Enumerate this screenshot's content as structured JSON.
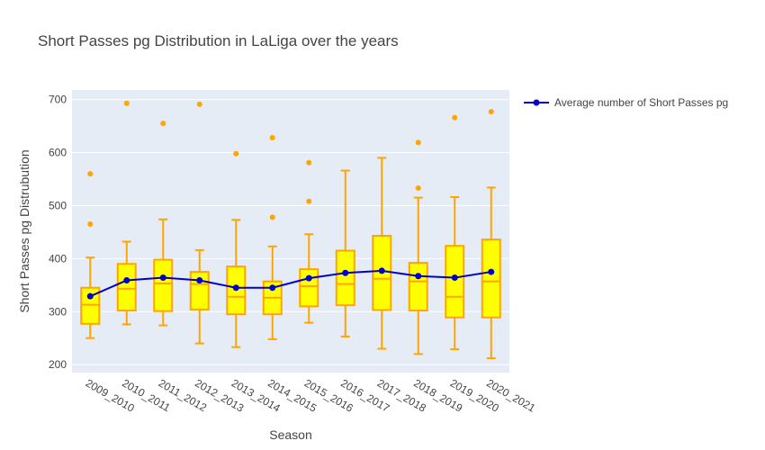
{
  "chart_data": {
    "type": "box",
    "title": "Short Passes pg Distribution in LaLiga over the years",
    "xlabel": "Season",
    "ylabel": "Short Passes pg Distrubution",
    "ylim": [
      185,
      718
    ],
    "yticks": [
      200,
      300,
      400,
      500,
      600,
      700
    ],
    "grid": true,
    "legend_position": "top-right",
    "categories": [
      "2009_2010",
      "2010_2011",
      "2011_2012",
      "2012_2013",
      "2013_2014",
      "2014_2015",
      "2015_2016",
      "2016_2017",
      "2017_2018",
      "2018_2019",
      "2019_2020",
      "2020_2021"
    ],
    "boxes": [
      {
        "lower_whisker": 250,
        "q1": 277,
        "median": 313,
        "q3": 345,
        "upper_whisker": 402,
        "outliers": [
          465,
          560
        ]
      },
      {
        "lower_whisker": 276,
        "q1": 302,
        "median": 343,
        "q3": 390,
        "upper_whisker": 432,
        "outliers": [
          693
        ]
      },
      {
        "lower_whisker": 274,
        "q1": 301,
        "median": 353,
        "q3": 398,
        "upper_whisker": 474,
        "outliers": [
          655
        ]
      },
      {
        "lower_whisker": 240,
        "q1": 304,
        "median": 352,
        "q3": 375,
        "upper_whisker": 416,
        "outliers": [
          691
        ]
      },
      {
        "lower_whisker": 233,
        "q1": 295,
        "median": 328,
        "q3": 385,
        "upper_whisker": 473,
        "outliers": [
          598
        ]
      },
      {
        "lower_whisker": 248,
        "q1": 295,
        "median": 326,
        "q3": 357,
        "upper_whisker": 423,
        "outliers": [
          478,
          628
        ]
      },
      {
        "lower_whisker": 279,
        "q1": 310,
        "median": 348,
        "q3": 380,
        "upper_whisker": 446,
        "outliers": [
          508,
          581
        ]
      },
      {
        "lower_whisker": 253,
        "q1": 312,
        "median": 352,
        "q3": 415,
        "upper_whisker": 566,
        "outliers": []
      },
      {
        "lower_whisker": 230,
        "q1": 303,
        "median": 362,
        "q3": 443,
        "upper_whisker": 590,
        "outliers": []
      },
      {
        "lower_whisker": 220,
        "q1": 302,
        "median": 357,
        "q3": 392,
        "upper_whisker": 515,
        "outliers": [
          533,
          619
        ]
      },
      {
        "lower_whisker": 229,
        "q1": 289,
        "median": 328,
        "q3": 424,
        "upper_whisker": 516,
        "outliers": [
          666
        ]
      },
      {
        "lower_whisker": 212,
        "q1": 289,
        "median": 357,
        "q3": 436,
        "upper_whisker": 534,
        "outliers": [
          677
        ]
      }
    ],
    "series": [
      {
        "name": "Average number of Short Passes pg",
        "values": [
          329,
          359,
          364,
          359,
          345,
          345,
          363,
          373,
          377,
          367,
          364,
          375
        ]
      }
    ],
    "colors": {
      "box_fill": "#ffff00",
      "box_line": "#ffa500",
      "average_line": "#0000cd",
      "plot_bg": "#e5ecf6",
      "grid": "#ffffff"
    }
  }
}
